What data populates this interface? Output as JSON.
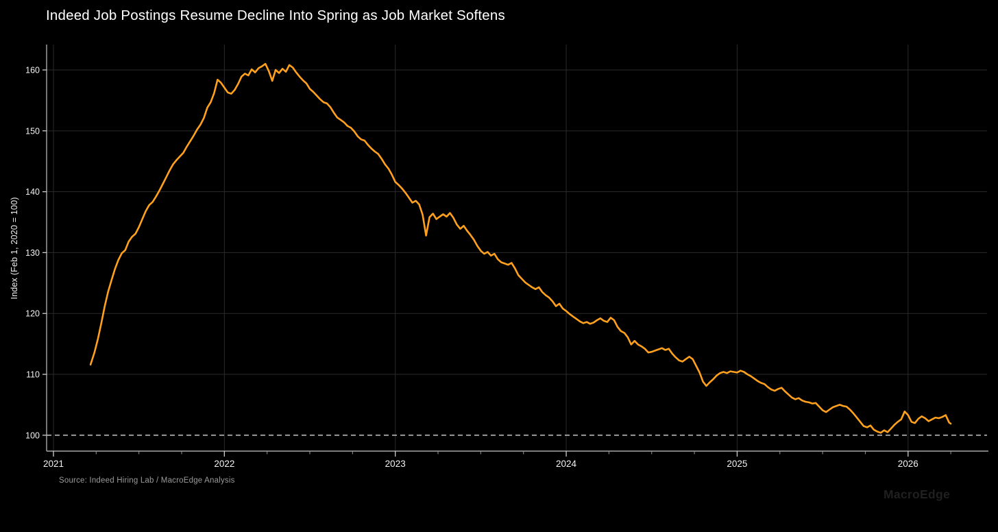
{
  "colors": {
    "background": "#000000",
    "line": "#FFA11E",
    "grid": "#2b2b2b",
    "spine": "#a8a8a8",
    "tick_major": "#cfcfcf",
    "tick_minor": "#8f8f8f",
    "tick_label": "#f2f2f2",
    "title_text": "#ffffff",
    "source_text": "#9b9b9b",
    "watermark_text": "#202020",
    "reference_line": "#d9d9d9"
  },
  "chart_data": {
    "type": "line",
    "title": "Indeed Job Postings Resume Decline Into Spring as Job Market Softens",
    "xlabel": "",
    "ylabel": "Index (Feb 1, 2020 = 100)",
    "source_note": "Source: Indeed Hiring Lab / MacroEdge Analysis",
    "watermark": "MacroEdge",
    "legend_position": "none",
    "grid": true,
    "x_domain": [
      2020.96,
      2026.47
    ],
    "y_domain": [
      97.39,
      164.17
    ],
    "x_ticks_major": [
      2021,
      2022,
      2023,
      2024,
      2025,
      2026
    ],
    "x_tick_labels": [
      "2021",
      "2022",
      "2023",
      "2024",
      "2025",
      "2026"
    ],
    "x_minor_tick_step": 0.25,
    "y_ticks_major": [
      100,
      110,
      120,
      130,
      140,
      150,
      160
    ],
    "y_tick_labels": [
      "100",
      "110",
      "120",
      "130",
      "140",
      "150",
      "160"
    ],
    "grid_x": [
      2021,
      2022,
      2023,
      2024,
      2025,
      2026
    ],
    "grid_y": [
      110,
      120,
      130,
      140,
      150,
      160
    ],
    "reference_line_y": 100,
    "series": [
      {
        "id": "indeed-job-postings-index",
        "points": [
          [
            2021.217,
            111.6
          ],
          [
            2021.24,
            113.6
          ],
          [
            2021.26,
            115.8
          ],
          [
            2021.28,
            118.4
          ],
          [
            2021.3,
            121.2
          ],
          [
            2021.32,
            123.6
          ],
          [
            2021.34,
            125.5
          ],
          [
            2021.36,
            127.3
          ],
          [
            2021.38,
            128.8
          ],
          [
            2021.4,
            129.9
          ],
          [
            2021.42,
            130.4
          ],
          [
            2021.44,
            131.8
          ],
          [
            2021.46,
            132.6
          ],
          [
            2021.48,
            133.1
          ],
          [
            2021.5,
            134.2
          ],
          [
            2021.52,
            135.5
          ],
          [
            2021.54,
            136.8
          ],
          [
            2021.56,
            137.8
          ],
          [
            2021.58,
            138.3
          ],
          [
            2021.6,
            139.2
          ],
          [
            2021.62,
            140.2
          ],
          [
            2021.64,
            141.3
          ],
          [
            2021.66,
            142.4
          ],
          [
            2021.68,
            143.5
          ],
          [
            2021.7,
            144.5
          ],
          [
            2021.72,
            145.2
          ],
          [
            2021.74,
            145.8
          ],
          [
            2021.76,
            146.4
          ],
          [
            2021.78,
            147.4
          ],
          [
            2021.8,
            148.3
          ],
          [
            2021.82,
            149.2
          ],
          [
            2021.84,
            150.2
          ],
          [
            2021.86,
            151.0
          ],
          [
            2021.88,
            152.1
          ],
          [
            2021.9,
            153.8
          ],
          [
            2021.92,
            154.7
          ],
          [
            2021.94,
            156.2
          ],
          [
            2021.96,
            158.4
          ],
          [
            2021.98,
            157.9
          ],
          [
            2022.0,
            157.1
          ],
          [
            2022.02,
            156.3
          ],
          [
            2022.04,
            156.1
          ],
          [
            2022.06,
            156.7
          ],
          [
            2022.08,
            157.7
          ],
          [
            2022.1,
            158.9
          ],
          [
            2022.12,
            159.4
          ],
          [
            2022.14,
            159.1
          ],
          [
            2022.16,
            160.1
          ],
          [
            2022.18,
            159.6
          ],
          [
            2022.2,
            160.3
          ],
          [
            2022.22,
            160.6
          ],
          [
            2022.24,
            161.0
          ],
          [
            2022.26,
            159.8
          ],
          [
            2022.28,
            158.2
          ],
          [
            2022.3,
            160.0
          ],
          [
            2022.32,
            159.5
          ],
          [
            2022.34,
            160.2
          ],
          [
            2022.36,
            159.7
          ],
          [
            2022.38,
            160.8
          ],
          [
            2022.4,
            160.4
          ],
          [
            2022.42,
            159.6
          ],
          [
            2022.44,
            158.9
          ],
          [
            2022.46,
            158.3
          ],
          [
            2022.48,
            157.8
          ],
          [
            2022.5,
            156.9
          ],
          [
            2022.52,
            156.4
          ],
          [
            2022.54,
            155.8
          ],
          [
            2022.56,
            155.2
          ],
          [
            2022.58,
            154.7
          ],
          [
            2022.6,
            154.5
          ],
          [
            2022.62,
            153.9
          ],
          [
            2022.64,
            153.0
          ],
          [
            2022.66,
            152.2
          ],
          [
            2022.68,
            151.8
          ],
          [
            2022.7,
            151.4
          ],
          [
            2022.72,
            150.8
          ],
          [
            2022.74,
            150.5
          ],
          [
            2022.76,
            149.9
          ],
          [
            2022.78,
            149.1
          ],
          [
            2022.8,
            148.6
          ],
          [
            2022.82,
            148.4
          ],
          [
            2022.84,
            147.7
          ],
          [
            2022.86,
            147.1
          ],
          [
            2022.88,
            146.6
          ],
          [
            2022.9,
            146.2
          ],
          [
            2022.92,
            145.4
          ],
          [
            2022.94,
            144.5
          ],
          [
            2022.96,
            143.8
          ],
          [
            2022.98,
            142.8
          ],
          [
            2023.0,
            141.6
          ],
          [
            2023.02,
            141.1
          ],
          [
            2023.04,
            140.5
          ],
          [
            2023.06,
            139.8
          ],
          [
            2023.08,
            139.0
          ],
          [
            2023.1,
            138.2
          ],
          [
            2023.12,
            138.5
          ],
          [
            2023.14,
            137.9
          ],
          [
            2023.16,
            136.2
          ],
          [
            2023.18,
            132.8
          ],
          [
            2023.2,
            135.8
          ],
          [
            2023.22,
            136.4
          ],
          [
            2023.24,
            135.5
          ],
          [
            2023.26,
            135.9
          ],
          [
            2023.28,
            136.3
          ],
          [
            2023.3,
            135.9
          ],
          [
            2023.32,
            136.5
          ],
          [
            2023.34,
            135.7
          ],
          [
            2023.36,
            134.6
          ],
          [
            2023.38,
            133.9
          ],
          [
            2023.4,
            134.4
          ],
          [
            2023.42,
            133.6
          ],
          [
            2023.44,
            132.9
          ],
          [
            2023.46,
            132.1
          ],
          [
            2023.48,
            131.1
          ],
          [
            2023.5,
            130.3
          ],
          [
            2023.52,
            129.8
          ],
          [
            2023.54,
            130.1
          ],
          [
            2023.56,
            129.5
          ],
          [
            2023.58,
            129.8
          ],
          [
            2023.6,
            128.9
          ],
          [
            2023.62,
            128.4
          ],
          [
            2023.64,
            128.2
          ],
          [
            2023.66,
            128.0
          ],
          [
            2023.68,
            128.3
          ],
          [
            2023.7,
            127.4
          ],
          [
            2023.72,
            126.3
          ],
          [
            2023.74,
            125.7
          ],
          [
            2023.76,
            125.1
          ],
          [
            2023.78,
            124.7
          ],
          [
            2023.8,
            124.3
          ],
          [
            2023.82,
            124.0
          ],
          [
            2023.84,
            124.3
          ],
          [
            2023.86,
            123.5
          ],
          [
            2023.88,
            123.0
          ],
          [
            2023.9,
            122.6
          ],
          [
            2023.92,
            122.0
          ],
          [
            2023.94,
            121.2
          ],
          [
            2023.96,
            121.6
          ],
          [
            2023.98,
            120.8
          ],
          [
            2024.0,
            120.4
          ],
          [
            2024.02,
            119.9
          ],
          [
            2024.04,
            119.5
          ],
          [
            2024.06,
            119.1
          ],
          [
            2024.08,
            118.7
          ],
          [
            2024.1,
            118.4
          ],
          [
            2024.12,
            118.6
          ],
          [
            2024.14,
            118.3
          ],
          [
            2024.16,
            118.5
          ],
          [
            2024.18,
            118.9
          ],
          [
            2024.2,
            119.2
          ],
          [
            2024.22,
            118.8
          ],
          [
            2024.24,
            118.6
          ],
          [
            2024.26,
            119.3
          ],
          [
            2024.28,
            118.9
          ],
          [
            2024.3,
            117.8
          ],
          [
            2024.32,
            117.1
          ],
          [
            2024.34,
            116.8
          ],
          [
            2024.36,
            116.1
          ],
          [
            2024.38,
            114.9
          ],
          [
            2024.4,
            115.5
          ],
          [
            2024.42,
            114.9
          ],
          [
            2024.44,
            114.6
          ],
          [
            2024.46,
            114.2
          ],
          [
            2024.48,
            113.6
          ],
          [
            2024.5,
            113.7
          ],
          [
            2024.52,
            113.9
          ],
          [
            2024.54,
            114.1
          ],
          [
            2024.56,
            114.3
          ],
          [
            2024.58,
            114.0
          ],
          [
            2024.6,
            114.2
          ],
          [
            2024.62,
            113.4
          ],
          [
            2024.64,
            112.8
          ],
          [
            2024.66,
            112.3
          ],
          [
            2024.68,
            112.1
          ],
          [
            2024.7,
            112.5
          ],
          [
            2024.72,
            112.9
          ],
          [
            2024.74,
            112.5
          ],
          [
            2024.76,
            111.4
          ],
          [
            2024.78,
            110.3
          ],
          [
            2024.8,
            108.8
          ],
          [
            2024.82,
            108.1
          ],
          [
            2024.84,
            108.7
          ],
          [
            2024.86,
            109.2
          ],
          [
            2024.88,
            109.8
          ],
          [
            2024.9,
            110.2
          ],
          [
            2024.92,
            110.4
          ],
          [
            2024.94,
            110.2
          ],
          [
            2024.96,
            110.5
          ],
          [
            2024.98,
            110.4
          ],
          [
            2025.0,
            110.3
          ],
          [
            2025.02,
            110.6
          ],
          [
            2025.04,
            110.4
          ],
          [
            2025.06,
            110.0
          ],
          [
            2025.08,
            109.7
          ],
          [
            2025.1,
            109.3
          ],
          [
            2025.12,
            108.9
          ],
          [
            2025.14,
            108.6
          ],
          [
            2025.16,
            108.4
          ],
          [
            2025.18,
            107.9
          ],
          [
            2025.2,
            107.5
          ],
          [
            2025.22,
            107.3
          ],
          [
            2025.24,
            107.6
          ],
          [
            2025.26,
            107.8
          ],
          [
            2025.28,
            107.2
          ],
          [
            2025.3,
            106.7
          ],
          [
            2025.32,
            106.2
          ],
          [
            2025.34,
            105.9
          ],
          [
            2025.36,
            106.1
          ],
          [
            2025.38,
            105.7
          ],
          [
            2025.4,
            105.5
          ],
          [
            2025.42,
            105.4
          ],
          [
            2025.44,
            105.2
          ],
          [
            2025.46,
            105.3
          ],
          [
            2025.48,
            104.7
          ],
          [
            2025.5,
            104.1
          ],
          [
            2025.52,
            103.8
          ],
          [
            2025.54,
            104.2
          ],
          [
            2025.56,
            104.6
          ],
          [
            2025.58,
            104.8
          ],
          [
            2025.6,
            105.0
          ],
          [
            2025.62,
            104.8
          ],
          [
            2025.64,
            104.7
          ],
          [
            2025.66,
            104.2
          ],
          [
            2025.68,
            103.6
          ],
          [
            2025.7,
            102.9
          ],
          [
            2025.72,
            102.2
          ],
          [
            2025.74,
            101.5
          ],
          [
            2025.76,
            101.3
          ],
          [
            2025.78,
            101.6
          ],
          [
            2025.8,
            100.9
          ],
          [
            2025.82,
            100.6
          ],
          [
            2025.84,
            100.4
          ],
          [
            2025.86,
            100.8
          ],
          [
            2025.88,
            100.5
          ],
          [
            2025.9,
            101.1
          ],
          [
            2025.92,
            101.7
          ],
          [
            2025.94,
            102.2
          ],
          [
            2025.96,
            102.6
          ],
          [
            2025.98,
            103.9
          ],
          [
            2026.0,
            103.3
          ],
          [
            2026.02,
            102.2
          ],
          [
            2026.04,
            102.0
          ],
          [
            2026.06,
            102.7
          ],
          [
            2026.08,
            103.1
          ],
          [
            2026.1,
            102.8
          ],
          [
            2026.12,
            102.3
          ],
          [
            2026.14,
            102.6
          ],
          [
            2026.16,
            102.9
          ],
          [
            2026.18,
            102.8
          ],
          [
            2026.2,
            103.0
          ],
          [
            2026.22,
            103.3
          ],
          [
            2026.24,
            102.1
          ],
          [
            2026.25,
            101.9
          ]
        ]
      }
    ]
  }
}
